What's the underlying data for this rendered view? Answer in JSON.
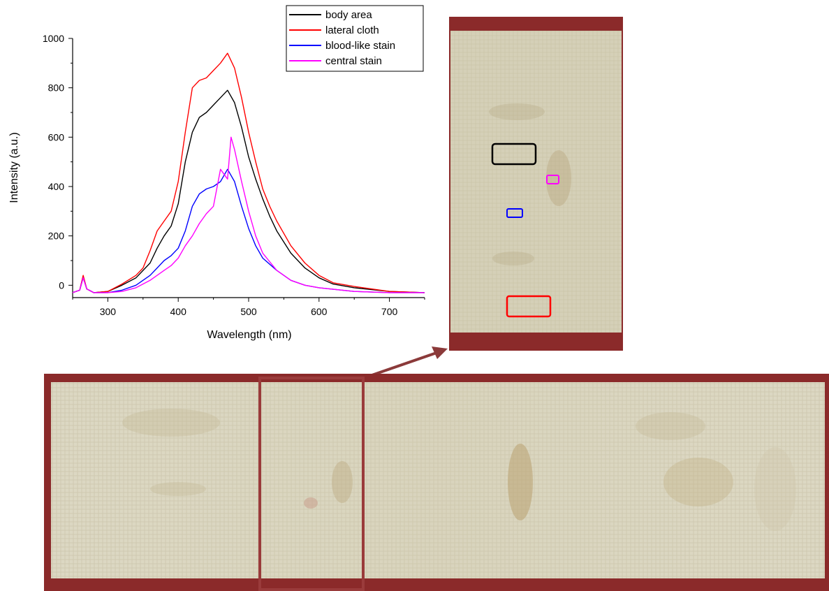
{
  "chart_data": {
    "type": "line",
    "xlabel": "Wavelength (nm)",
    "ylabel": "Intensity (a.u.)",
    "xlim": [
      250,
      750
    ],
    "ylim": [
      -50,
      1000
    ],
    "xticks": [
      300,
      400,
      500,
      600,
      700
    ],
    "yticks": [
      0,
      200,
      400,
      600,
      800,
      1000
    ],
    "grid": false,
    "legend_position": "top-right",
    "series": [
      {
        "name": "body area",
        "color": "#000000",
        "points": [
          [
            250,
            -30
          ],
          [
            260,
            -20
          ],
          [
            265,
            35
          ],
          [
            270,
            -15
          ],
          [
            280,
            -30
          ],
          [
            300,
            -25
          ],
          [
            320,
            0
          ],
          [
            340,
            30
          ],
          [
            350,
            60
          ],
          [
            360,
            90
          ],
          [
            370,
            150
          ],
          [
            380,
            200
          ],
          [
            390,
            240
          ],
          [
            400,
            330
          ],
          [
            410,
            500
          ],
          [
            420,
            620
          ],
          [
            430,
            680
          ],
          [
            440,
            700
          ],
          [
            450,
            730
          ],
          [
            460,
            760
          ],
          [
            470,
            790
          ],
          [
            480,
            740
          ],
          [
            490,
            640
          ],
          [
            500,
            520
          ],
          [
            510,
            430
          ],
          [
            520,
            350
          ],
          [
            530,
            280
          ],
          [
            540,
            220
          ],
          [
            560,
            130
          ],
          [
            580,
            70
          ],
          [
            600,
            30
          ],
          [
            620,
            5
          ],
          [
            650,
            -10
          ],
          [
            700,
            -25
          ],
          [
            750,
            -30
          ]
        ]
      },
      {
        "name": "lateral cloth",
        "color": "#ff0000",
        "points": [
          [
            250,
            -30
          ],
          [
            260,
            -20
          ],
          [
            265,
            40
          ],
          [
            270,
            -15
          ],
          [
            280,
            -30
          ],
          [
            300,
            -25
          ],
          [
            320,
            5
          ],
          [
            340,
            40
          ],
          [
            350,
            70
          ],
          [
            360,
            140
          ],
          [
            370,
            220
          ],
          [
            380,
            260
          ],
          [
            390,
            300
          ],
          [
            400,
            420
          ],
          [
            410,
            620
          ],
          [
            420,
            800
          ],
          [
            430,
            830
          ],
          [
            440,
            840
          ],
          [
            450,
            870
          ],
          [
            460,
            900
          ],
          [
            470,
            940
          ],
          [
            480,
            880
          ],
          [
            490,
            760
          ],
          [
            500,
            620
          ],
          [
            510,
            500
          ],
          [
            520,
            390
          ],
          [
            530,
            320
          ],
          [
            540,
            260
          ],
          [
            560,
            160
          ],
          [
            580,
            90
          ],
          [
            600,
            40
          ],
          [
            620,
            10
          ],
          [
            650,
            -5
          ],
          [
            700,
            -25
          ],
          [
            750,
            -30
          ]
        ]
      },
      {
        "name": "blood-like stain",
        "color": "#0000ff",
        "points": [
          [
            250,
            -30
          ],
          [
            260,
            -20
          ],
          [
            265,
            30
          ],
          [
            270,
            -15
          ],
          [
            280,
            -30
          ],
          [
            300,
            -30
          ],
          [
            320,
            -20
          ],
          [
            340,
            0
          ],
          [
            360,
            40
          ],
          [
            370,
            70
          ],
          [
            380,
            100
          ],
          [
            390,
            120
          ],
          [
            400,
            150
          ],
          [
            410,
            220
          ],
          [
            420,
            320
          ],
          [
            430,
            370
          ],
          [
            440,
            390
          ],
          [
            450,
            400
          ],
          [
            460,
            420
          ],
          [
            470,
            470
          ],
          [
            480,
            420
          ],
          [
            490,
            320
          ],
          [
            500,
            230
          ],
          [
            510,
            160
          ],
          [
            520,
            110
          ],
          [
            540,
            60
          ],
          [
            560,
            20
          ],
          [
            580,
            0
          ],
          [
            600,
            -10
          ],
          [
            650,
            -25
          ],
          [
            700,
            -30
          ],
          [
            750,
            -30
          ]
        ]
      },
      {
        "name": "central stain",
        "color": "#ff00ff",
        "points": [
          [
            250,
            -30
          ],
          [
            260,
            -20
          ],
          [
            265,
            30
          ],
          [
            270,
            -15
          ],
          [
            280,
            -30
          ],
          [
            300,
            -30
          ],
          [
            320,
            -25
          ],
          [
            340,
            -10
          ],
          [
            360,
            20
          ],
          [
            380,
            60
          ],
          [
            390,
            80
          ],
          [
            400,
            110
          ],
          [
            410,
            160
          ],
          [
            420,
            200
          ],
          [
            430,
            250
          ],
          [
            440,
            290
          ],
          [
            450,
            320
          ],
          [
            460,
            470
          ],
          [
            470,
            430
          ],
          [
            475,
            600
          ],
          [
            480,
            550
          ],
          [
            490,
            420
          ],
          [
            500,
            300
          ],
          [
            510,
            200
          ],
          [
            520,
            130
          ],
          [
            540,
            60
          ],
          [
            560,
            20
          ],
          [
            580,
            0
          ],
          [
            600,
            -10
          ],
          [
            650,
            -25
          ],
          [
            700,
            -30
          ],
          [
            750,
            -30
          ]
        ]
      }
    ]
  },
  "photos": {
    "detail_boxes": [
      {
        "name": "body area",
        "color": "#000000"
      },
      {
        "name": "central stain",
        "color": "#ff00ff"
      },
      {
        "name": "blood-like stain",
        "color": "#0000ff"
      },
      {
        "name": "lateral cloth",
        "color": "#ff0000"
      }
    ],
    "frame_color": "#8b2a2a",
    "cloth_color": "#dcd7c2"
  }
}
